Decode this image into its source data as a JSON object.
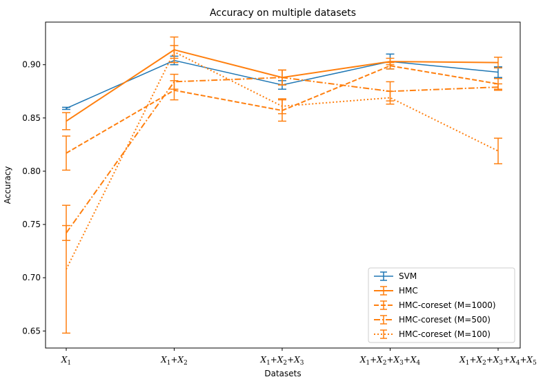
{
  "chart_data": {
    "type": "line",
    "title": "Accuracy on multiple datasets",
    "xlabel": "Datasets",
    "ylabel": "Accuracy",
    "categories": [
      [
        "X",
        "1"
      ],
      [
        "X",
        "1",
        "+X",
        "2"
      ],
      [
        "X",
        "1",
        "+X",
        "2",
        "+X",
        "3"
      ],
      [
        "X",
        "1",
        "+X",
        "2",
        "+X",
        "3",
        "+X",
        "4"
      ],
      [
        "X",
        "1",
        "+X",
        "2",
        "+X",
        "3",
        "+X",
        "4",
        "+X",
        "5"
      ]
    ],
    "ylim": [
      0.634,
      0.94
    ],
    "yticks": [
      0.65,
      0.7,
      0.75,
      0.8,
      0.85,
      0.9
    ],
    "ytick_labels": [
      "0.65",
      "0.70",
      "0.75",
      "0.80",
      "0.85",
      "0.90"
    ],
    "grid": false,
    "legend_position": "bottom-right",
    "series": [
      {
        "name": "SVM",
        "color": "#1f77b4",
        "style": "solid",
        "width": 1.5,
        "values": [
          0.859,
          0.904,
          0.881,
          0.903,
          0.893
        ],
        "errors": [
          0.001,
          0.004,
          0.004,
          0.007,
          0.005
        ]
      },
      {
        "name": "HMC",
        "color": "#ff7f0e",
        "style": "solid",
        "width": 2,
        "values": [
          0.847,
          0.914,
          0.888,
          0.903,
          0.902
        ],
        "errors": [
          0.008,
          0.012,
          0.007,
          0.003,
          0.005
        ]
      },
      {
        "name": "HMC-coreset (M=1000)",
        "color": "#ff7f0e",
        "style": "dashed",
        "width": 2,
        "values": [
          0.817,
          0.876,
          0.857,
          0.899,
          0.882
        ],
        "errors": [
          0.016,
          0.009,
          0.01,
          0.003,
          0.005
        ]
      },
      {
        "name": "HMC-coreset (M=500)",
        "color": "#ff7f0e",
        "style": "dashdot",
        "width": 2,
        "values": [
          0.742,
          0.884,
          0.888,
          0.875,
          0.879
        ],
        "errors": [
          0.007,
          0.007,
          0.007,
          0.009,
          0.003
        ]
      },
      {
        "name": "HMC-coreset (M=100)",
        "color": "#ff7f0e",
        "style": "dotted",
        "width": 2,
        "values": [
          0.708,
          0.912,
          0.861,
          0.869,
          0.819
        ],
        "errors": [
          0.06,
          0.006,
          0.007,
          0.006,
          0.012
        ]
      }
    ]
  }
}
